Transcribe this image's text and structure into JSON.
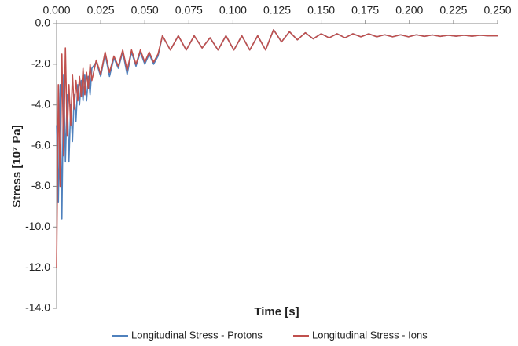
{
  "chart_data": {
    "type": "line",
    "x_label": "Time [s]",
    "y_label": "Stress [10⁷ Pa]",
    "x": [
      0.0,
      0.001,
      0.002,
      0.003,
      0.004,
      0.005,
      0.006,
      0.007,
      0.008,
      0.009,
      0.01,
      0.011,
      0.012,
      0.013,
      0.014,
      0.015,
      0.016,
      0.017,
      0.018,
      0.019,
      0.02,
      0.0225,
      0.025,
      0.0275,
      0.03,
      0.0325,
      0.035,
      0.0375,
      0.04,
      0.0425,
      0.045,
      0.0475,
      0.05,
      0.0525,
      0.055,
      0.0575,
      0.06,
      0.0645,
      0.069,
      0.0735,
      0.078,
      0.0825,
      0.087,
      0.0915,
      0.096,
      0.1005,
      0.105,
      0.1095,
      0.114,
      0.1185,
      0.123,
      0.1275,
      0.132,
      0.1365,
      0.141,
      0.1455,
      0.15,
      0.1545,
      0.159,
      0.1635,
      0.168,
      0.1725,
      0.177,
      0.1815,
      0.186,
      0.1905,
      0.195,
      0.1995,
      0.204,
      0.2085,
      0.213,
      0.2175,
      0.222,
      0.2265,
      0.231,
      0.2355,
      0.24,
      0.2445,
      0.25
    ],
    "series": [
      {
        "name": "Longitudinal Stress - Protons",
        "color": "#4f81bd",
        "values": [
          -5.0,
          -8.8,
          -3.0,
          -9.6,
          -2.5,
          -6.8,
          -3.5,
          -6.8,
          -4.0,
          -5.8,
          -3.5,
          -4.8,
          -3.0,
          -4.0,
          -2.8,
          -3.8,
          -2.5,
          -3.8,
          -2.6,
          -3.5,
          -2.2,
          -1.9,
          -2.6,
          -1.5,
          -2.6,
          -1.7,
          -2.2,
          -1.4,
          -2.5,
          -1.4,
          -2.1,
          -1.4,
          -2.0,
          -1.5,
          -2.0,
          -1.6,
          -0.6,
          -1.3,
          -0.6,
          -1.3,
          -0.6,
          -1.2,
          -0.7,
          -1.3,
          -0.6,
          -1.3,
          -0.6,
          -1.3,
          -0.6,
          -1.3,
          -0.3,
          -0.9,
          -0.4,
          -0.8,
          -0.45,
          -0.75,
          -0.5,
          -0.7,
          -0.5,
          -0.7,
          -0.5,
          -0.65,
          -0.5,
          -0.65,
          -0.55,
          -0.65,
          -0.55,
          -0.65,
          -0.55,
          -0.63,
          -0.56,
          -0.63,
          -0.57,
          -0.62,
          -0.57,
          -0.62,
          -0.57,
          -0.6,
          -0.6
        ]
      },
      {
        "name": "Longitudinal Stress - Ions",
        "color": "#c0504d",
        "values": [
          -12.0,
          -3.0,
          -8.0,
          -1.5,
          -6.5,
          -1.2,
          -5.5,
          -3.0,
          -5.0,
          -2.5,
          -4.2,
          -2.8,
          -3.8,
          -2.6,
          -3.6,
          -2.2,
          -3.5,
          -2.4,
          -3.2,
          -2.0,
          -2.8,
          -1.8,
          -2.5,
          -1.4,
          -2.4,
          -1.6,
          -2.1,
          -1.3,
          -2.3,
          -1.3,
          -2.0,
          -1.3,
          -1.9,
          -1.4,
          -1.9,
          -1.5,
          -0.6,
          -1.3,
          -0.6,
          -1.3,
          -0.6,
          -1.2,
          -0.7,
          -1.3,
          -0.6,
          -1.3,
          -0.6,
          -1.3,
          -0.6,
          -1.3,
          -0.3,
          -0.9,
          -0.4,
          -0.8,
          -0.45,
          -0.75,
          -0.5,
          -0.7,
          -0.5,
          -0.7,
          -0.5,
          -0.65,
          -0.5,
          -0.65,
          -0.55,
          -0.65,
          -0.55,
          -0.65,
          -0.55,
          -0.63,
          -0.56,
          -0.63,
          -0.57,
          -0.62,
          -0.57,
          -0.62,
          -0.57,
          -0.6,
          -0.6
        ]
      }
    ],
    "xlim": [
      0,
      0.25
    ],
    "xticks": [
      {
        "value": 0,
        "label": "0.000"
      },
      {
        "value": 0.025,
        "label": "0.025"
      },
      {
        "value": 0.05,
        "label": "0.050"
      },
      {
        "value": 0.075,
        "label": "0.075"
      },
      {
        "value": 0.1,
        "label": "0.100"
      },
      {
        "value": 0.125,
        "label": "0.125"
      },
      {
        "value": 0.15,
        "label": "0.150"
      },
      {
        "value": 0.175,
        "label": "0.175"
      },
      {
        "value": 0.2,
        "label": "0.200"
      },
      {
        "value": 0.225,
        "label": "0.225"
      },
      {
        "value": 0.25,
        "label": "0.250"
      }
    ],
    "ylim": [
      -14,
      0
    ],
    "yticks": [
      {
        "value": 0,
        "label": "0.0"
      },
      {
        "value": -2,
        "label": "-2.0"
      },
      {
        "value": -4,
        "label": "-4.0"
      },
      {
        "value": -6,
        "label": "-6.0"
      },
      {
        "value": -8,
        "label": "-8.0"
      },
      {
        "value": -10,
        "label": "-10.0"
      },
      {
        "value": -12,
        "label": "-12.0"
      },
      {
        "value": -14,
        "label": "-14.0"
      }
    ],
    "legend": "bottom"
  }
}
